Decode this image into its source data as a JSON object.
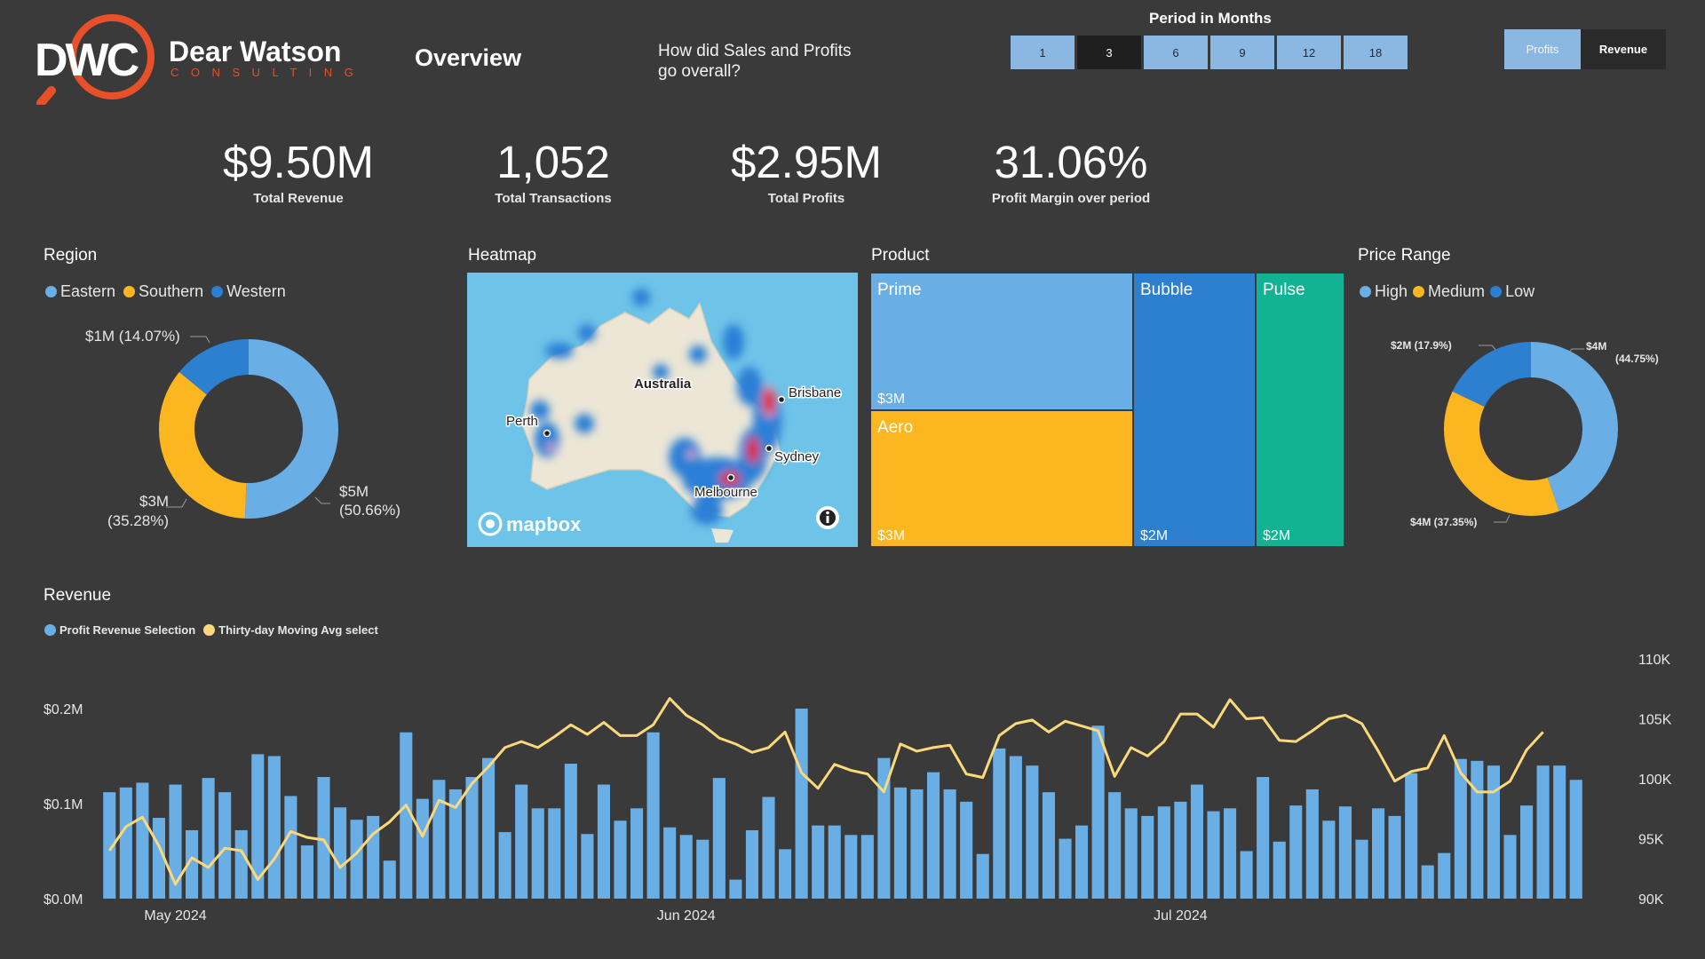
{
  "header": {
    "logo_mark": "DWC",
    "logo_name": "Dear Watson",
    "logo_sub": "CONSULTING",
    "page_title": "Overview",
    "question": "How did Sales and Profits go overall?"
  },
  "period": {
    "title": "Period in Months",
    "options": [
      "1",
      "3",
      "6",
      "9",
      "12",
      "18"
    ],
    "selected": [
      "1",
      "6",
      "9",
      "12",
      "18"
    ]
  },
  "toggle": {
    "profits_label": "Profits",
    "revenue_label": "Revenue"
  },
  "kpis": [
    {
      "value": "$9.50M",
      "label": "Total Revenue"
    },
    {
      "value": "1,052",
      "label": "Total Transactions"
    },
    {
      "value": "$2.95M",
      "label": "Total Profits"
    },
    {
      "value": "31.06%",
      "label": "Profit Margin over period"
    }
  ],
  "region": {
    "title": "Region",
    "legend": [
      {
        "name": "Eastern",
        "color": "#6aaee6"
      },
      {
        "name": "Southern",
        "color": "#fbb620"
      },
      {
        "name": "Western",
        "color": "#2d7fd0"
      }
    ],
    "slices": [
      {
        "name": "Eastern",
        "value": 50.66,
        "color": "#6aaee6",
        "label": "$5M",
        "pct": "(50.66%)"
      },
      {
        "name": "Southern",
        "value": 35.28,
        "color": "#fbb620",
        "label": "$3M",
        "pct": "(35.28%)"
      },
      {
        "name": "Western",
        "value": 14.07,
        "color": "#2d7fd0",
        "label": "$1M (14.07%)",
        "pct": ""
      }
    ]
  },
  "heatmap": {
    "title": "Heatmap",
    "country": "Australia",
    "cities": [
      "Brisbane",
      "Sydney",
      "Melbourne",
      "Perth"
    ],
    "attribution": "mapbox",
    "info_icon": "info-icon"
  },
  "product": {
    "title": "Product",
    "tiles": [
      {
        "name": "Prime",
        "value": "$3M",
        "color": "#6aaee6"
      },
      {
        "name": "Aero",
        "value": "$3M",
        "color": "#fbb620"
      },
      {
        "name": "Bubble",
        "value": "$2M",
        "color": "#2d7fd0"
      },
      {
        "name": "Pulse",
        "value": "$2M",
        "color": "#12b394"
      }
    ]
  },
  "price_range": {
    "title": "Price Range",
    "legend": [
      {
        "name": "High",
        "color": "#6aaee6"
      },
      {
        "name": "Medium",
        "color": "#fbb620"
      },
      {
        "name": "Low",
        "color": "#2d7fd0"
      }
    ],
    "slices": [
      {
        "name": "High",
        "value": 44.75,
        "color": "#6aaee6",
        "label": "$4M",
        "pct": "(44.75%)"
      },
      {
        "name": "Medium",
        "value": 37.35,
        "color": "#fbb620",
        "label": "$4M (37.35%)",
        "pct": ""
      },
      {
        "name": "Low",
        "value": 17.9,
        "color": "#2d7fd0",
        "label": "$2M (17.9%)",
        "pct": ""
      }
    ]
  },
  "revenue": {
    "title": "Revenue",
    "legend": [
      {
        "name": "Profit Revenue Selection",
        "color": "#6aaee6"
      },
      {
        "name": "Thirty-day Moving Avg select",
        "color": "#fbd97a"
      }
    ]
  },
  "chart_data": {
    "type": "bar",
    "title": "Revenue",
    "x_tick_labels": [
      "May 2024",
      "Jun 2024",
      "Jul 2024"
    ],
    "x_tick_index": [
      4,
      35,
      65
    ],
    "y_left": {
      "ticks": [
        "$0.0M",
        "$0.1M",
        "$0.2M"
      ],
      "ylim": [
        0,
        0.2
      ]
    },
    "y_right": {
      "ticks": [
        "90K",
        "95K",
        "100K",
        "105K",
        "110K"
      ],
      "ylim": [
        90,
        110
      ]
    },
    "series": [
      {
        "name": "Profit Revenue Selection",
        "kind": "bar",
        "axis": "left",
        "color": "#6aaee6",
        "values": [
          0.112,
          0.117,
          0.122,
          0.085,
          0.12,
          0.072,
          0.127,
          0.112,
          0.072,
          0.152,
          0.15,
          0.108,
          0.056,
          0.128,
          0.096,
          0.083,
          0.087,
          0.04,
          0.175,
          0.105,
          0.125,
          0.115,
          0.128,
          0.148,
          0.07,
          0.12,
          0.095,
          0.095,
          0.142,
          0.068,
          0.12,
          0.082,
          0.095,
          0.175,
          0.075,
          0.067,
          0.062,
          0.127,
          0.02,
          0.072,
          0.107,
          0.052,
          0.2,
          0.077,
          0.077,
          0.067,
          0.067,
          0.148,
          0.117,
          0.115,
          0.133,
          0.115,
          0.102,
          0.047,
          0.158,
          0.15,
          0.14,
          0.112,
          0.063,
          0.077,
          0.182,
          0.112,
          0.095,
          0.087,
          0.097,
          0.102,
          0.12,
          0.092,
          0.095,
          0.05,
          0.128,
          0.06,
          0.098,
          0.115,
          0.082,
          0.097,
          0.062,
          0.095,
          0.087,
          0.132,
          0.035,
          0.048,
          0.147,
          0.145,
          0.14,
          0.067,
          0.098,
          0.14,
          0.14,
          0.125
        ]
      },
      {
        "name": "Thirty-day Moving Avg select",
        "kind": "line",
        "axis": "right",
        "color": "#fbd97a",
        "values": [
          94,
          96,
          96.8,
          94.4,
          91.2,
          93.4,
          92.6,
          94.2,
          94,
          91.6,
          93.3,
          95.6,
          95.1,
          94.9,
          92.6,
          93.8,
          95.4,
          96.4,
          97.8,
          95.2,
          98.2,
          97.6,
          99.6,
          101,
          102.6,
          103.1,
          102.6,
          103.5,
          104.5,
          103.7,
          104.7,
          103.6,
          103.6,
          104.5,
          106.7,
          105.3,
          104.5,
          103.4,
          102.9,
          102.2,
          102.6,
          103.9,
          100.5,
          99.2,
          101.2,
          100.7,
          100.4,
          98.9,
          102.9,
          102.3,
          102.6,
          102.8,
          100.4,
          100.1,
          103.6,
          104.6,
          104.9,
          103.9,
          104.8,
          104.4,
          104,
          100.2,
          102.6,
          101.9,
          103.1,
          105.4,
          105.4,
          104.3,
          106.6,
          105,
          105.1,
          103.2,
          103.1,
          104,
          105,
          105.3,
          104.6,
          102.3,
          99.8,
          100.6,
          100.9,
          103.6,
          100.5,
          98.9,
          98.9,
          99.8,
          102.4,
          103.9
        ]
      }
    ]
  }
}
